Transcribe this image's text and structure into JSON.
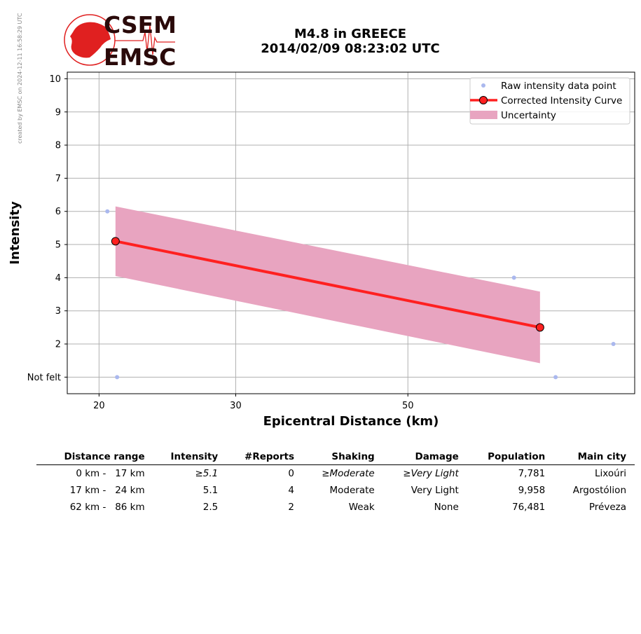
{
  "side_note": "created by EMSC on 2024-12-11 16:58:29 UTC",
  "logo": {
    "line1": "CSEM",
    "line2": "EMSC"
  },
  "title": {
    "line1": "M4.8 in GREECE",
    "line2": "2014/02/09 08:23:02 UTC"
  },
  "colors": {
    "raw": "#aab8ee",
    "curve": "#ff2020",
    "band": "#e8a4c0",
    "logo_red": "#e02020",
    "logo_text": "#2a0a0a"
  },
  "chart_data": {
    "type": "line",
    "xlabel": "Epicentral Distance (km)",
    "ylabel": "Intensity",
    "x_scale": "log",
    "xlim": [
      18.2,
      98
    ],
    "ylim": [
      0.5,
      10.2
    ],
    "x_ticks": [
      20,
      30,
      50
    ],
    "x_tick_labels": [
      "20",
      "30",
      "50"
    ],
    "y_ticks": [
      1,
      2,
      3,
      4,
      5,
      6,
      7,
      8,
      9,
      10
    ],
    "y_tick_labels": [
      "Not felt",
      "2",
      "3",
      "4",
      "5",
      "6",
      "7",
      "8",
      "9",
      "10"
    ],
    "grid": true,
    "legend_position": "top-right",
    "raw_points": {
      "name": "Raw intensity data point",
      "points": [
        [
          20.5,
          6
        ],
        [
          21.1,
          1
        ],
        [
          68.5,
          4
        ],
        [
          77.5,
          1
        ],
        [
          92,
          2
        ]
      ]
    },
    "curve": {
      "name": "Corrected Intensity Curve",
      "points": [
        [
          21.0,
          5.1
        ],
        [
          74.0,
          2.5
        ]
      ]
    },
    "uncertainty": {
      "name": "Uncertainty",
      "x": [
        21.0,
        74.0
      ],
      "upper": [
        6.15,
        3.58
      ],
      "lower": [
        4.05,
        1.42
      ]
    }
  },
  "table": {
    "headers": [
      "Distance range",
      "Intensity",
      "#Reports",
      "Shaking",
      "Damage",
      "Population",
      "Main city"
    ],
    "rows": [
      [
        "0 km -   17 km",
        "≥5.1",
        "0",
        "≥Moderate",
        "≥Very Light",
        "7,781",
        "Lixoúri"
      ],
      [
        "17 km -   24 km",
        "5.1",
        "4",
        "Moderate",
        "Very Light",
        "9,958",
        "Argostólion"
      ],
      [
        "62 km -   86 km",
        "2.5",
        "2",
        "Weak",
        "None",
        "76,481",
        "Préveza"
      ]
    ]
  }
}
